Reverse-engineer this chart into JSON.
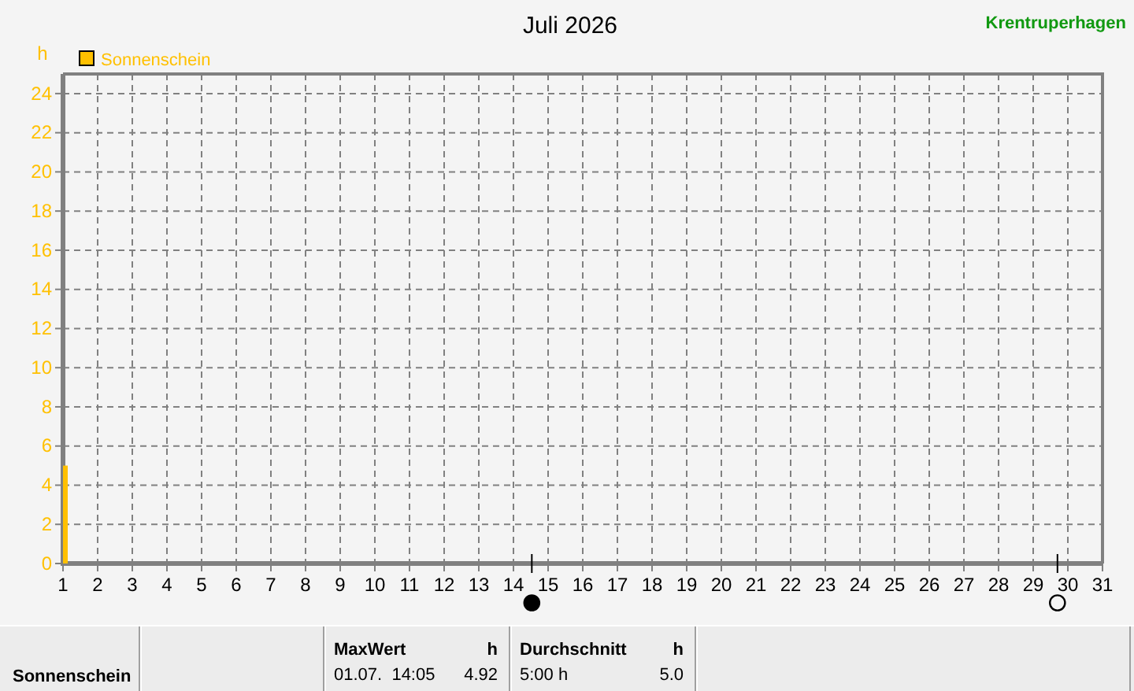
{
  "chart_data": {
    "type": "bar",
    "title": "Juli 2026",
    "subtitle": "Krentruperhagen",
    "ylabel": "h",
    "x": [
      1
    ],
    "series": [
      {
        "name": "Sonnenschein",
        "color": "#ffc000",
        "values": [
          5.0
        ]
      }
    ],
    "xlim": [
      1,
      31
    ],
    "xticks": [
      1,
      2,
      3,
      4,
      5,
      6,
      7,
      8,
      9,
      10,
      11,
      12,
      13,
      14,
      15,
      16,
      17,
      18,
      19,
      20,
      21,
      22,
      23,
      24,
      25,
      26,
      27,
      28,
      29,
      30,
      31
    ],
    "ylim": [
      0,
      25
    ],
    "yticks": [
      0,
      2,
      4,
      6,
      8,
      10,
      12,
      14,
      16,
      18,
      20,
      22,
      24
    ],
    "grid": true,
    "legend": "top left",
    "annotations": [
      "Sonnenschein",
      "MaxWert",
      "h",
      "01.07.  14:05",
      "4.92",
      "Durchschnitt",
      "h",
      "5:00 h",
      "5.0"
    ]
  }
}
